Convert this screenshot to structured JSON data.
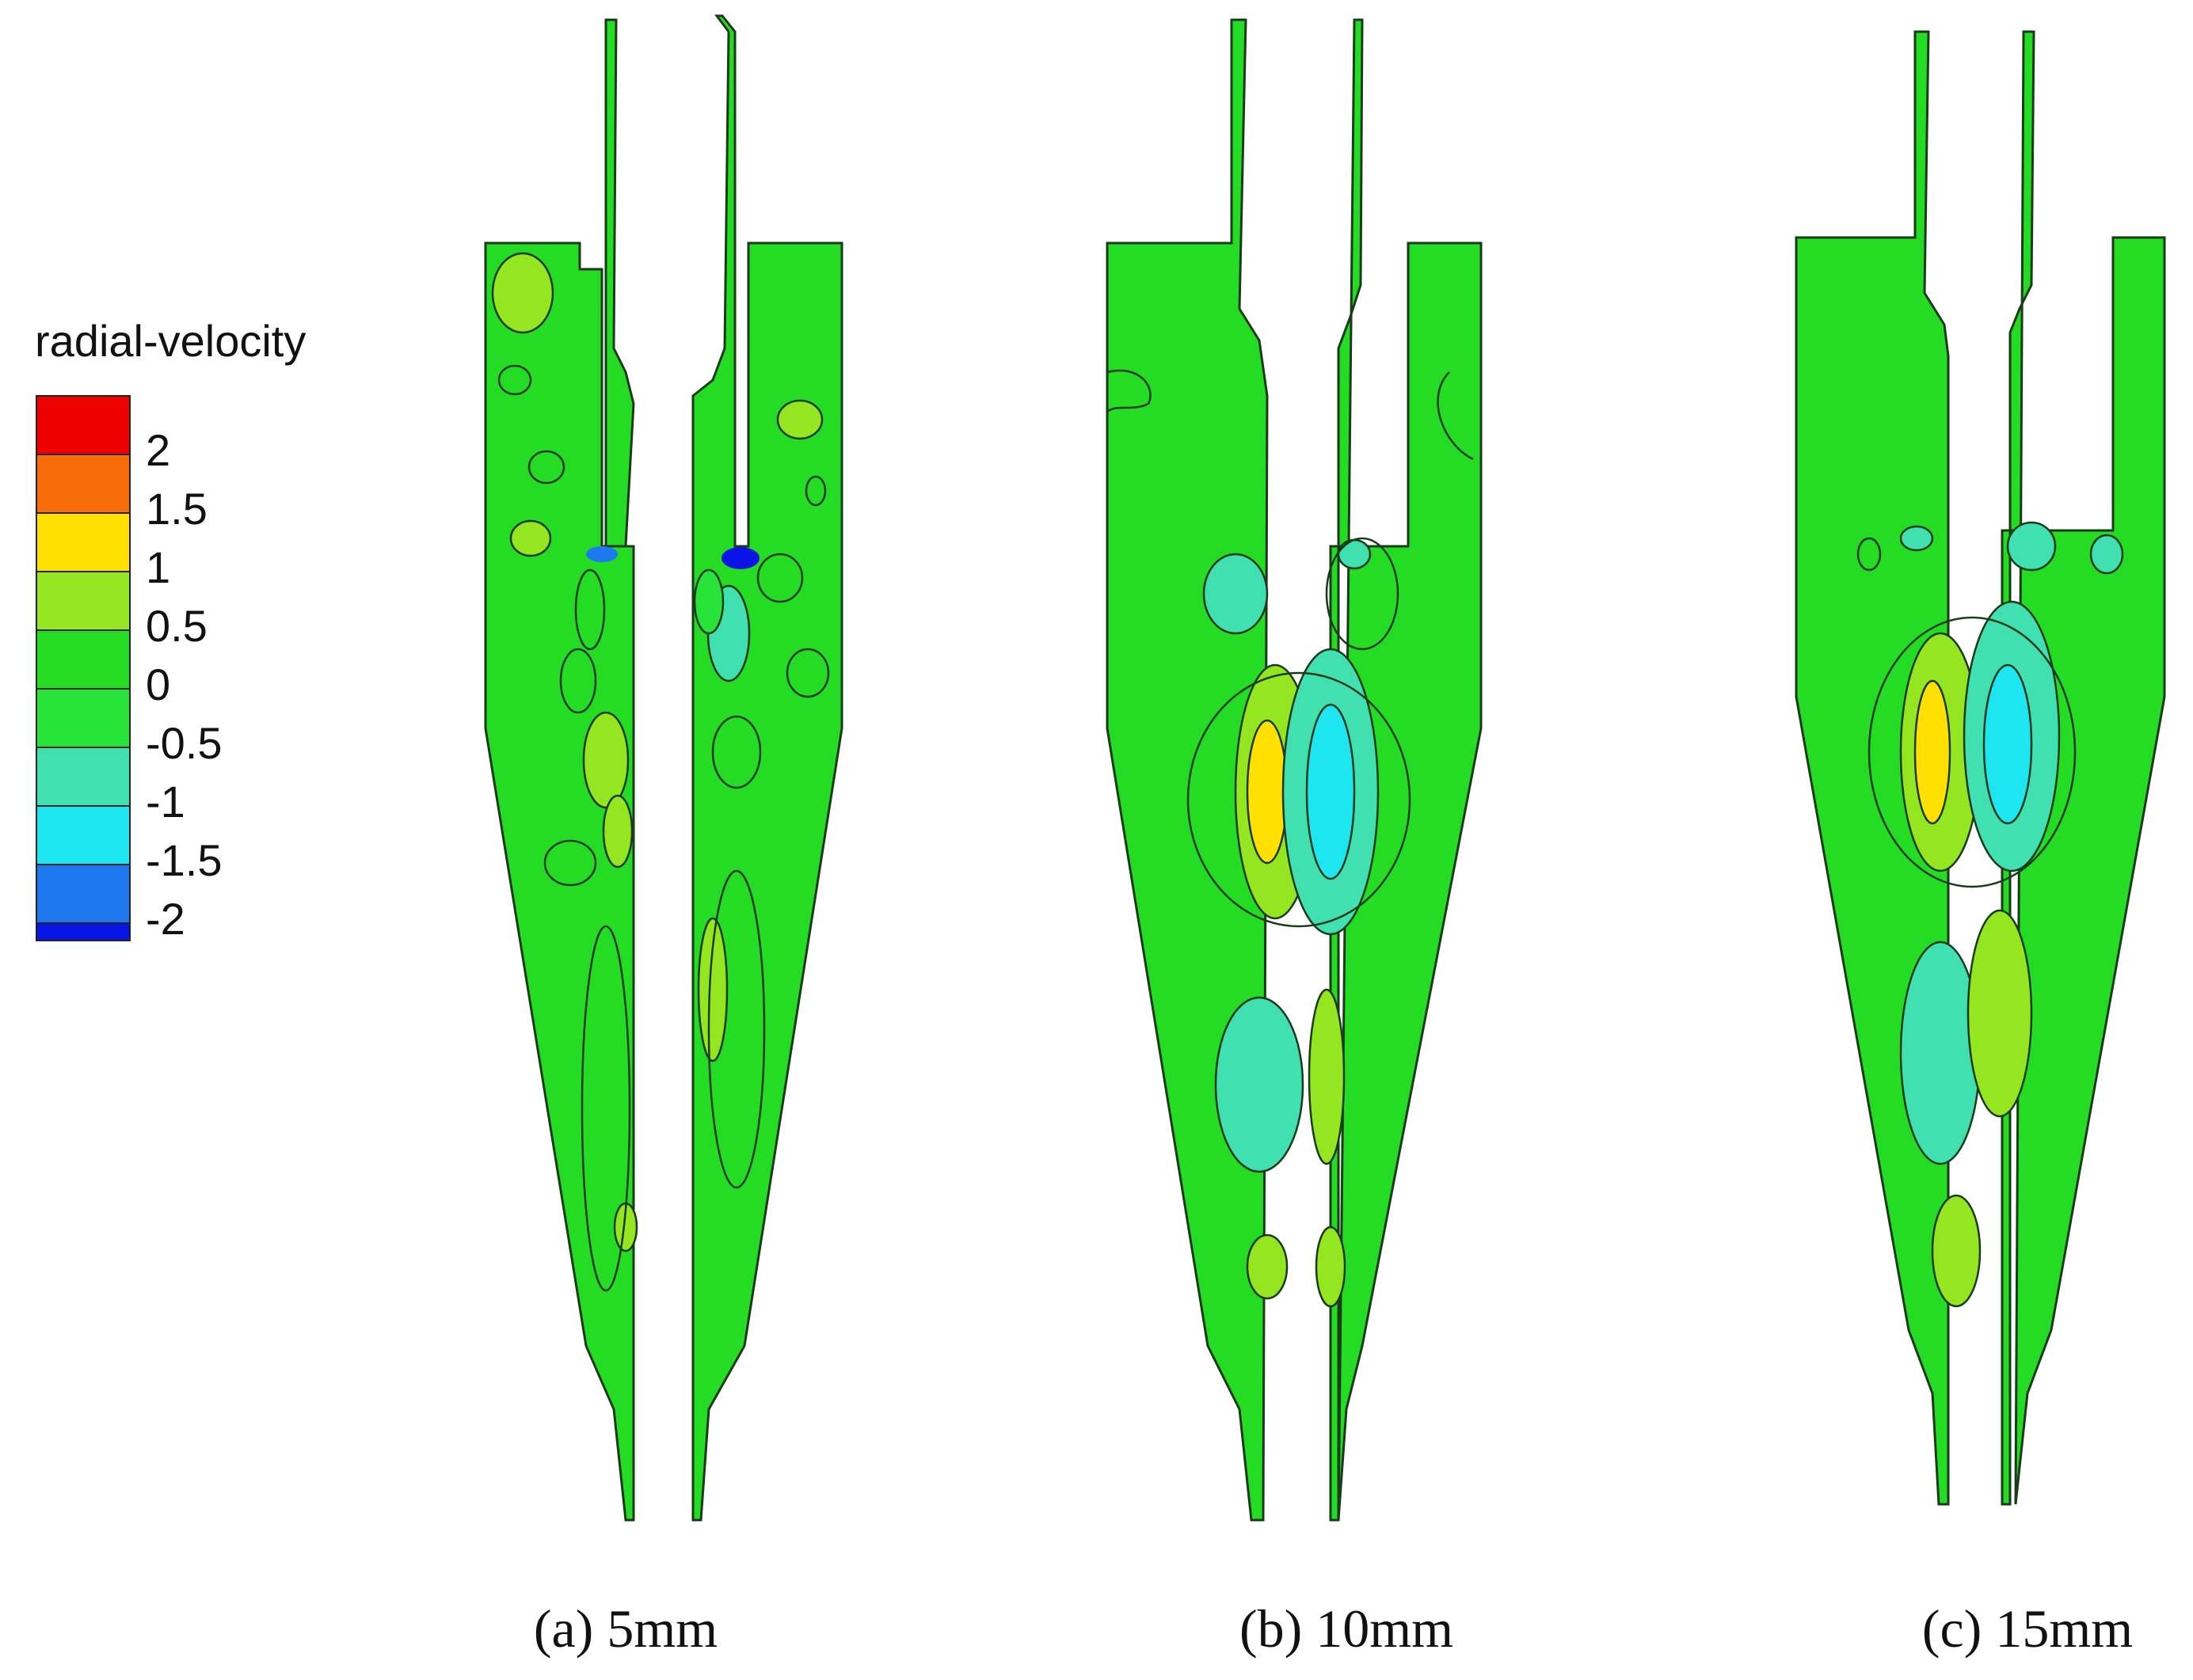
{
  "legend": {
    "title": "radial-velocity",
    "levels": [
      {
        "label": "2",
        "color": "#ee0000"
      },
      {
        "label": "1.5",
        "color": "#f86d0a"
      },
      {
        "label": "1",
        "color": "#ffe000"
      },
      {
        "label": "0.5",
        "color": "#94e620"
      },
      {
        "label": "0",
        "color": "#24dc24"
      },
      {
        "label": "-0.5",
        "color": "#27e33a"
      },
      {
        "label": "-1",
        "color": "#40e0b0"
      },
      {
        "label": "-1.5",
        "color": "#1ee6f0"
      },
      {
        "label": "-2",
        "color": "#1e78ee"
      }
    ],
    "bottom_color": "#0a14e6"
  },
  "panels": [
    {
      "caption": "(a)  5mm",
      "slot_mm": 5
    },
    {
      "caption": "(b)  10mm",
      "slot_mm": 10
    },
    {
      "caption": "(c)  15mm",
      "slot_mm": 15
    }
  ],
  "colors": {
    "field": "#24dc24",
    "contour": "#1a3a1a"
  }
}
